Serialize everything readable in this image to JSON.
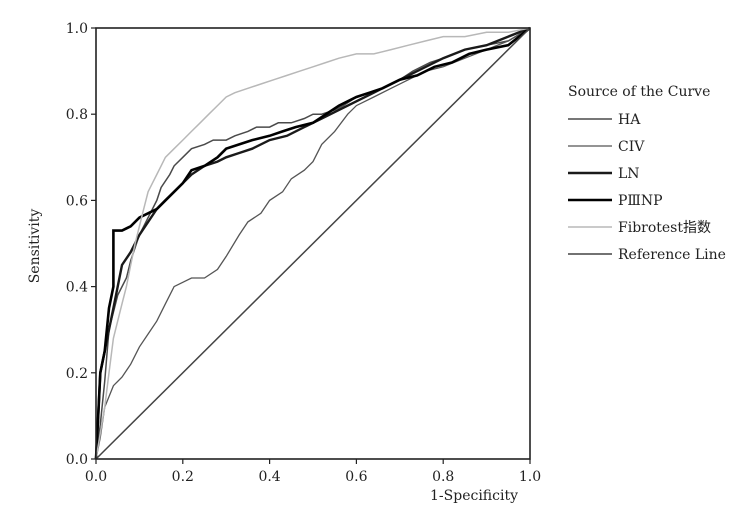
{
  "chart_data": {
    "type": "line",
    "xlabel": "1-Specificity",
    "ylabel": "Sensitivity",
    "xlim": [
      0,
      1
    ],
    "ylim": [
      0,
      1
    ],
    "xticks": [
      "0.0",
      "0.2",
      "0.4",
      "0.6",
      "0.8",
      "1.0"
    ],
    "yticks": [
      "0.0",
      "0.2",
      "0.4",
      "0.6",
      "0.8",
      "1.0"
    ],
    "grid": false,
    "legend": {
      "title": "Source of the Curve",
      "position": "right"
    },
    "series": [
      {
        "name": "HA",
        "color": "#4a4a4a",
        "stroke_width": 1.5,
        "x": [
          0,
          0.01,
          0.02,
          0.03,
          0.05,
          0.07,
          0.08,
          0.1,
          0.12,
          0.14,
          0.15,
          0.17,
          0.18,
          0.2,
          0.22,
          0.25,
          0.27,
          0.3,
          0.32,
          0.35,
          0.37,
          0.4,
          0.42,
          0.45,
          0.48,
          0.5,
          0.52,
          0.55,
          0.57,
          0.6,
          0.63,
          0.66,
          0.7,
          0.73,
          0.77,
          0.8,
          0.85,
          0.9,
          0.95,
          1.0
        ],
        "y": [
          0,
          0.08,
          0.18,
          0.3,
          0.38,
          0.42,
          0.46,
          0.52,
          0.56,
          0.6,
          0.63,
          0.66,
          0.68,
          0.7,
          0.72,
          0.73,
          0.74,
          0.74,
          0.75,
          0.76,
          0.77,
          0.77,
          0.78,
          0.78,
          0.79,
          0.8,
          0.8,
          0.81,
          0.82,
          0.84,
          0.85,
          0.86,
          0.88,
          0.9,
          0.92,
          0.93,
          0.95,
          0.96,
          0.97,
          1.0
        ]
      },
      {
        "name": "CIV",
        "color": "#555555",
        "stroke_width": 1.3,
        "x": [
          0,
          0.01,
          0.02,
          0.04,
          0.06,
          0.08,
          0.1,
          0.12,
          0.14,
          0.16,
          0.18,
          0.2,
          0.22,
          0.25,
          0.28,
          0.3,
          0.33,
          0.35,
          0.38,
          0.4,
          0.43,
          0.45,
          0.48,
          0.5,
          0.52,
          0.55,
          0.58,
          0.6,
          0.64,
          0.68,
          0.72,
          0.76,
          0.8,
          0.85,
          0.9,
          0.95,
          1.0
        ],
        "y": [
          0,
          0.05,
          0.12,
          0.17,
          0.19,
          0.22,
          0.26,
          0.29,
          0.32,
          0.36,
          0.4,
          0.41,
          0.42,
          0.42,
          0.44,
          0.47,
          0.52,
          0.55,
          0.57,
          0.6,
          0.62,
          0.65,
          0.67,
          0.69,
          0.73,
          0.76,
          0.8,
          0.82,
          0.84,
          0.86,
          0.88,
          0.9,
          0.91,
          0.93,
          0.95,
          0.97,
          1.0
        ]
      },
      {
        "name": "LN",
        "color": "#1a1a1a",
        "stroke_width": 2.4,
        "x": [
          0,
          0.005,
          0.01,
          0.02,
          0.03,
          0.04,
          0.05,
          0.06,
          0.08,
          0.1,
          0.12,
          0.14,
          0.16,
          0.18,
          0.2,
          0.22,
          0.25,
          0.28,
          0.3,
          0.33,
          0.36,
          0.4,
          0.44,
          0.48,
          0.52,
          0.56,
          0.6,
          0.64,
          0.68,
          0.72,
          0.76,
          0.8,
          0.85,
          0.9,
          0.95,
          1.0
        ],
        "y": [
          0,
          0.1,
          0.2,
          0.25,
          0.3,
          0.35,
          0.4,
          0.45,
          0.48,
          0.52,
          0.55,
          0.58,
          0.6,
          0.62,
          0.64,
          0.66,
          0.68,
          0.69,
          0.7,
          0.71,
          0.72,
          0.74,
          0.75,
          0.77,
          0.79,
          0.81,
          0.83,
          0.85,
          0.87,
          0.89,
          0.91,
          0.93,
          0.95,
          0.96,
          0.98,
          1.0
        ]
      },
      {
        "name": "PⅢNP",
        "color": "#000000",
        "stroke_width": 2.6,
        "x": [
          0,
          0.005,
          0.01,
          0.02,
          0.03,
          0.04,
          0.04,
          0.06,
          0.08,
          0.1,
          0.12,
          0.14,
          0.16,
          0.18,
          0.2,
          0.22,
          0.25,
          0.28,
          0.3,
          0.33,
          0.36,
          0.4,
          0.43,
          0.46,
          0.5,
          0.53,
          0.56,
          0.6,
          0.63,
          0.66,
          0.7,
          0.74,
          0.78,
          0.82,
          0.86,
          0.9,
          0.95,
          1.0
        ],
        "y": [
          0,
          0.1,
          0.2,
          0.25,
          0.35,
          0.4,
          0.53,
          0.53,
          0.54,
          0.56,
          0.57,
          0.58,
          0.6,
          0.62,
          0.64,
          0.67,
          0.68,
          0.7,
          0.72,
          0.73,
          0.74,
          0.75,
          0.76,
          0.77,
          0.78,
          0.8,
          0.82,
          0.84,
          0.85,
          0.86,
          0.88,
          0.89,
          0.91,
          0.92,
          0.94,
          0.95,
          0.96,
          1.0
        ]
      },
      {
        "name": "Fibrotest指数",
        "color": "#b8b8b8",
        "stroke_width": 1.5,
        "x": [
          0,
          0.01,
          0.02,
          0.03,
          0.04,
          0.05,
          0.06,
          0.07,
          0.08,
          0.09,
          0.1,
          0.11,
          0.12,
          0.13,
          0.14,
          0.15,
          0.16,
          0.18,
          0.2,
          0.22,
          0.24,
          0.26,
          0.28,
          0.3,
          0.32,
          0.35,
          0.38,
          0.41,
          0.44,
          0.47,
          0.5,
          0.53,
          0.56,
          0.6,
          0.64,
          0.68,
          0.72,
          0.76,
          0.8,
          0.85,
          0.9,
          0.95,
          1.0
        ],
        "y": [
          0,
          0.06,
          0.12,
          0.2,
          0.28,
          0.32,
          0.36,
          0.4,
          0.45,
          0.5,
          0.54,
          0.58,
          0.62,
          0.64,
          0.66,
          0.68,
          0.7,
          0.72,
          0.74,
          0.76,
          0.78,
          0.8,
          0.82,
          0.84,
          0.85,
          0.86,
          0.87,
          0.88,
          0.89,
          0.9,
          0.91,
          0.92,
          0.93,
          0.94,
          0.94,
          0.95,
          0.96,
          0.97,
          0.98,
          0.98,
          0.99,
          0.99,
          1.0
        ]
      },
      {
        "name": "Reference Line",
        "color": "#444444",
        "stroke_width": 1.5,
        "x": [
          0,
          1.0
        ],
        "y": [
          0,
          1.0
        ]
      }
    ]
  }
}
